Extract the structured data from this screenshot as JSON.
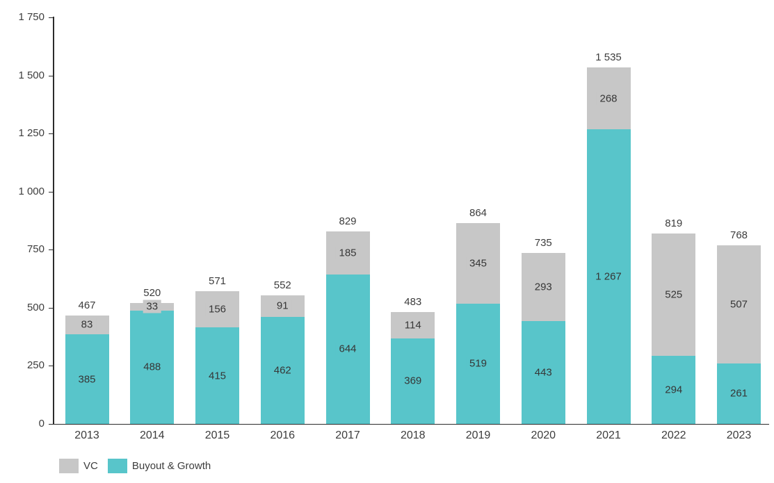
{
  "chart_data": {
    "type": "bar",
    "stacked": true,
    "title": "",
    "categories": [
      "2013",
      "2014",
      "2015",
      "2016",
      "2017",
      "2018",
      "2019",
      "2020",
      "2021",
      "2022",
      "2023"
    ],
    "series": [
      {
        "name": "Buyout & Growth",
        "color": "#58C5CA",
        "values": [
          385,
          488,
          415,
          462,
          644,
          369,
          519,
          443,
          1267,
          294,
          261
        ],
        "labels": [
          "385",
          "488",
          "415",
          "462",
          "644",
          "369",
          "519",
          "443",
          "1 267",
          "294",
          "261"
        ]
      },
      {
        "name": "VC",
        "color": "#C7C7C7",
        "values": [
          83,
          33,
          156,
          91,
          185,
          114,
          345,
          293,
          268,
          525,
          507
        ],
        "labels": [
          "83",
          "33",
          "156",
          "91",
          "185",
          "114",
          "345",
          "293",
          "268",
          "525",
          "507"
        ]
      }
    ],
    "totals": {
      "values": [
        467,
        520,
        571,
        552,
        829,
        483,
        864,
        735,
        1535,
        819,
        768
      ],
      "labels": [
        "467",
        "520",
        "571",
        "552",
        "829",
        "483",
        "864",
        "735",
        "1 535",
        "819",
        "768"
      ]
    },
    "y_axis": {
      "min": 0,
      "max": 1750,
      "tick_interval": 250,
      "tick_labels": [
        "0",
        "250",
        "500",
        "750",
        "1 000",
        "1 250",
        "1 500",
        "1 750"
      ]
    },
    "grid": false,
    "legend": {
      "position": "bottom-left",
      "items": [
        {
          "label": "VC",
          "color": "#C7C7C7"
        },
        {
          "label": "Buyout & Growth",
          "color": "#58C5CA"
        }
      ]
    },
    "colors": {
      "text": "#3C3C3C",
      "axis": "#2B2B2B",
      "background": "#FFFFFF"
    }
  }
}
